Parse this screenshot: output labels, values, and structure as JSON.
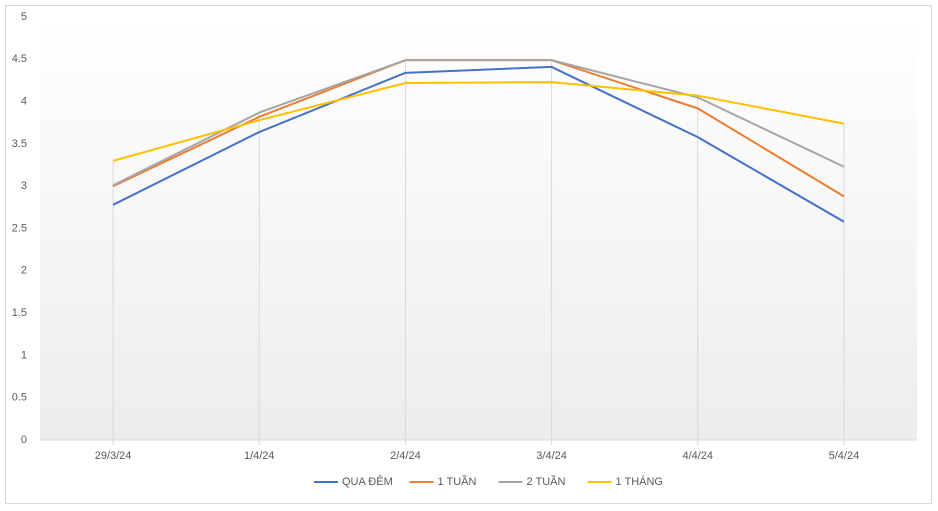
{
  "chart_data": {
    "type": "line",
    "categories": [
      "29/3/24",
      "1/4/24",
      "2/4/24",
      "3/4/24",
      "4/4/24",
      "5/4/24"
    ],
    "series": [
      {
        "name": "QUA ĐÊM",
        "color": "#4472c4",
        "values": [
          2.78,
          3.64,
          4.34,
          4.41,
          3.58,
          2.58
        ]
      },
      {
        "name": "1 TUẦN",
        "color": "#ed7d31",
        "values": [
          3.0,
          3.82,
          4.49,
          4.49,
          3.92,
          2.88
        ]
      },
      {
        "name": "2 TUẦN",
        "color": "#a5a5a5",
        "values": [
          3.01,
          3.87,
          4.49,
          4.49,
          4.05,
          3.23
        ]
      },
      {
        "name": "1 THÁNG",
        "color": "#ffc000",
        "values": [
          3.3,
          3.78,
          4.22,
          4.23,
          4.07,
          3.74
        ]
      }
    ],
    "ylim": [
      0,
      5
    ],
    "yticks": [
      0,
      0.5,
      1,
      1.5,
      2,
      2.5,
      3,
      3.5,
      4,
      4.5,
      5
    ],
    "legend": "bottom"
  }
}
